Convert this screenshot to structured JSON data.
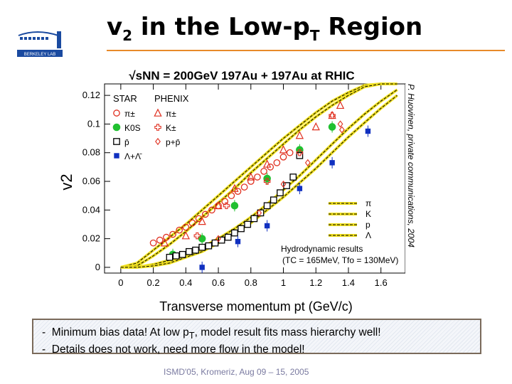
{
  "slide": {
    "title_main": "v",
    "title_sub": "2",
    "title_rest": " in the Low-p",
    "title_rest_sub": "T",
    "title_end": " Region",
    "logo_text": "BERKELEY LAB",
    "credit": "P. Huovinen, private communications, 2004",
    "notes": [
      {
        "bullet": "-",
        "a": "Minimum bias data!     At low p",
        "sub": "T",
        "b": ", model result fits mass hierarchy well!"
      },
      {
        "bullet": "-",
        "a": "Details does not work, need more flow in the model!",
        "sub": "",
        "b": ""
      }
    ],
    "footer": "ISMD'05, Kromeriz, Aug 09 – 15, 2005",
    "colors": {
      "accent": "#e88a2a",
      "red": "#e03020",
      "green": "#20c030",
      "blue": "#1030c0",
      "yellow": "#f0e020"
    }
  },
  "chart_data": {
    "type": "scatter",
    "title": "√sNN = 200GeV 197Au + 197Au at RHIC",
    "xlabel": "Transverse momentum pt (GeV/c)",
    "ylabel": "v2",
    "xlim": [
      -0.1,
      1.75
    ],
    "ylim": [
      -0.004,
      0.128
    ],
    "xticks": [
      0,
      0.2,
      0.4,
      0.6,
      0.8,
      1,
      1.2,
      1.4,
      1.6
    ],
    "xtick_labels": [
      "0",
      "0.2",
      "0.4",
      "0.6",
      "0.8",
      "1",
      "1.2",
      "1.4",
      "1.6"
    ],
    "yticks": [
      0,
      0.02,
      0.04,
      0.06,
      0.08,
      0.1,
      0.12
    ],
    "ytick_labels": [
      "0",
      "0.02",
      "0.04",
      "0.06",
      "0.08",
      "0.1",
      "0.12"
    ],
    "legend_headers": [
      "STAR",
      "PHENIX"
    ],
    "legend_labels": [
      "π±",
      "K0S",
      "p̄",
      "Λ+Λ̄",
      "π±",
      "K±",
      "p+p̄"
    ],
    "hydro_title": "Hydrodynamic results",
    "hydro_params": "(TC = 165MeV, Tfo = 130MeV)",
    "hydro_labels": [
      "π",
      "K",
      "p",
      "Λ"
    ],
    "series": [
      {
        "name": "STAR pi",
        "marker": "circle-open",
        "color": "#e03020",
        "x": [
          0.2,
          0.24,
          0.28,
          0.32,
          0.36,
          0.4,
          0.44,
          0.48,
          0.52,
          0.56,
          0.6,
          0.64,
          0.68,
          0.72,
          0.76,
          0.8,
          0.84,
          0.88,
          0.92,
          0.96,
          1.0,
          1.04
        ],
        "y": [
          0.017,
          0.019,
          0.021,
          0.023,
          0.026,
          0.028,
          0.031,
          0.034,
          0.037,
          0.04,
          0.043,
          0.046,
          0.05,
          0.053,
          0.056,
          0.06,
          0.063,
          0.067,
          0.07,
          0.073,
          0.077,
          0.08
        ]
      },
      {
        "name": "STAR K0S",
        "marker": "circle-filled",
        "color": "#20c030",
        "x": [
          0.32,
          0.5,
          0.7,
          0.9,
          1.1,
          1.3
        ],
        "y": [
          0.009,
          0.02,
          0.043,
          0.062,
          0.082,
          0.098
        ]
      },
      {
        "name": "STAR pbar",
        "marker": "square-open",
        "color": "#000000",
        "x": [
          0.3,
          0.34,
          0.38,
          0.42,
          0.46,
          0.5,
          0.54,
          0.58,
          0.62,
          0.66,
          0.7,
          0.74,
          0.78,
          0.82,
          0.86,
          0.9,
          0.94,
          0.98,
          1.02,
          1.06,
          1.1
        ],
        "y": [
          0.007,
          0.008,
          0.009,
          0.011,
          0.012,
          0.014,
          0.015,
          0.017,
          0.019,
          0.021,
          0.024,
          0.027,
          0.03,
          0.034,
          0.038,
          0.043,
          0.047,
          0.052,
          0.057,
          0.063,
          0.078
        ]
      },
      {
        "name": "STAR Lambda",
        "marker": "square-filled",
        "color": "#1030c0",
        "x": [
          0.5,
          0.72,
          0.9,
          1.1,
          1.3,
          1.52
        ],
        "y": [
          0.0,
          0.018,
          0.029,
          0.055,
          0.073,
          0.095
        ]
      },
      {
        "name": "PHENIX pi",
        "marker": "triangle-open",
        "color": "#e03020",
        "x": [
          0.27,
          0.4,
          0.5,
          0.6,
          0.7,
          0.8,
          0.9,
          1.0,
          1.1,
          1.2,
          1.3,
          1.35
        ],
        "y": [
          0.017,
          0.022,
          0.032,
          0.043,
          0.055,
          0.063,
          0.072,
          0.082,
          0.092,
          0.098,
          0.106,
          0.113
        ]
      },
      {
        "name": "PHENIX K",
        "marker": "cross-open",
        "color": "#e03020",
        "x": [
          0.47,
          0.65,
          0.9,
          1.1,
          1.3
        ],
        "y": [
          0.022,
          0.043,
          0.06,
          0.08,
          0.106
        ]
      },
      {
        "name": "PHENIX p",
        "marker": "diamond-open",
        "color": "#e03020",
        "x": [
          0.6,
          0.85,
          1.0,
          1.15,
          1.35,
          1.36
        ],
        "y": [
          0.02,
          0.038,
          0.058,
          0.073,
          0.1,
          0.096
        ]
      }
    ],
    "hydro_curves": [
      {
        "name": "pi",
        "x": [
          0.0,
          0.1,
          0.2,
          0.3,
          0.4,
          0.5,
          0.6,
          0.7,
          0.8,
          0.9,
          1.0,
          1.1,
          1.2,
          1.3,
          1.4,
          1.5,
          1.6,
          1.7
        ],
        "y": [
          0.0,
          0.003,
          0.012,
          0.021,
          0.03,
          0.04,
          0.05,
          0.06,
          0.07,
          0.08,
          0.09,
          0.099,
          0.108,
          0.116,
          0.122,
          0.127,
          0.13,
          0.133
        ]
      },
      {
        "name": "K",
        "x": [
          0.0,
          0.1,
          0.2,
          0.3,
          0.4,
          0.5,
          0.6,
          0.7,
          0.8,
          0.9,
          1.0,
          1.1,
          1.2,
          1.3,
          1.4,
          1.5,
          1.6,
          1.7
        ],
        "y": [
          0.0,
          0.001,
          0.008,
          0.016,
          0.025,
          0.035,
          0.045,
          0.055,
          0.066,
          0.076,
          0.086,
          0.096,
          0.105,
          0.113,
          0.12,
          0.126,
          0.131,
          0.135
        ]
      },
      {
        "name": "p",
        "x": [
          0.0,
          0.1,
          0.2,
          0.3,
          0.4,
          0.5,
          0.6,
          0.7,
          0.8,
          0.9,
          1.0,
          1.1,
          1.2,
          1.3,
          1.4,
          1.5,
          1.6,
          1.7
        ],
        "y": [
          0.0,
          0.0,
          0.002,
          0.005,
          0.009,
          0.014,
          0.02,
          0.027,
          0.035,
          0.044,
          0.054,
          0.064,
          0.075,
          0.086,
          0.097,
          0.107,
          0.116,
          0.124
        ]
      },
      {
        "name": "Lambda",
        "x": [
          0.0,
          0.1,
          0.2,
          0.3,
          0.4,
          0.5,
          0.6,
          0.7,
          0.8,
          0.9,
          1.0,
          1.1,
          1.2,
          1.3,
          1.4,
          1.5,
          1.6,
          1.7
        ],
        "y": [
          0.0,
          0.0,
          0.001,
          0.003,
          0.007,
          0.011,
          0.017,
          0.024,
          0.031,
          0.04,
          0.049,
          0.059,
          0.069,
          0.08,
          0.091,
          0.101,
          0.111,
          0.12
        ]
      }
    ]
  }
}
